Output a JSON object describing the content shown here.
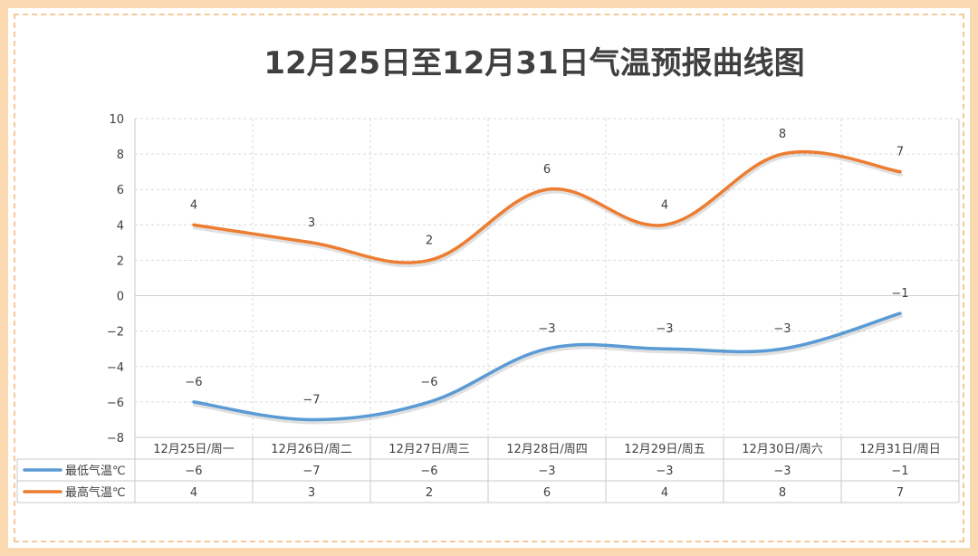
{
  "chart_data": {
    "type": "line",
    "title": "12月25日至12月31日气温预报曲线图",
    "categories": [
      "12月25日/周一",
      "12月26日/周二",
      "12月27日/周三",
      "12月28日/周四",
      "12月29日/周五",
      "12月30日/周六",
      "12月31日/周日"
    ],
    "series": [
      {
        "name": "最低气温℃",
        "values": [
          -6,
          -7,
          -6,
          -3,
          -3,
          -3,
          -1
        ],
        "color": "#5b9bd5"
      },
      {
        "name": "最高气温℃",
        "values": [
          4,
          3,
          2,
          6,
          4,
          8,
          7
        ],
        "color": "#ed7d31"
      }
    ],
    "ylim": [
      -8,
      10
    ],
    "yticks": [
      10,
      8,
      6,
      4,
      2,
      0,
      -2,
      -4,
      -6,
      -8
    ],
    "grid": true,
    "legend": "data-table-below",
    "smooth": true
  }
}
